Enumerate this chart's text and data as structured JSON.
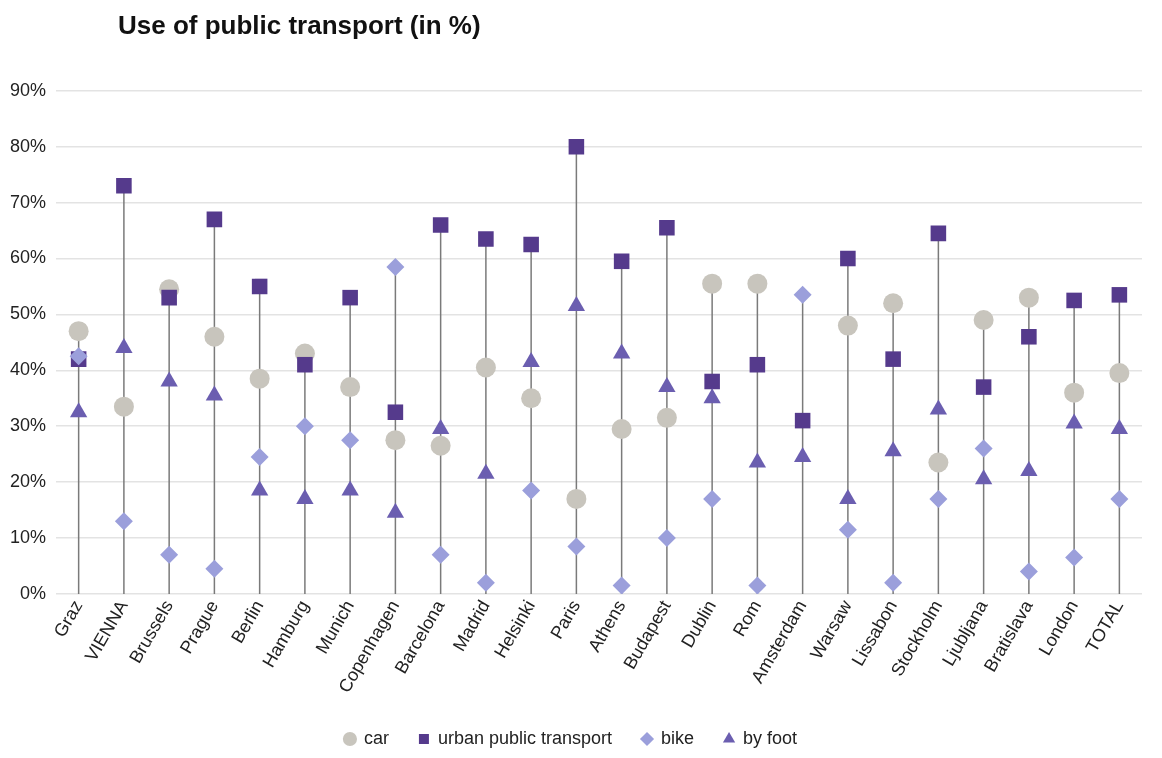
{
  "chart_data": {
    "type": "scatter",
    "title": "Use of public transport (in %)",
    "categories": [
      "Graz",
      "VIENNA",
      "Brussels",
      "Prague",
      "Berlin",
      "Hamburg",
      "Munich",
      "Copenhagen",
      "Barcelona",
      "Madrid",
      "Helsinki",
      "Paris",
      "Athens",
      "Budapest",
      "Dublin",
      "Rom",
      "Amsterdam",
      "Warsaw",
      "Lissabon",
      "Stockholm",
      "Ljubljana",
      "Bratislava",
      "London",
      "TOTAL"
    ],
    "series": [
      {
        "name": "car",
        "color": "#c8c5bd",
        "marker": "circle",
        "values": [
          47,
          33.5,
          54.5,
          46,
          38.5,
          43,
          37,
          27.5,
          26.5,
          40.5,
          35,
          17,
          29.5,
          31.5,
          55.5,
          55.5,
          null,
          48,
          52,
          23.5,
          49,
          53,
          36,
          39.5
        ]
      },
      {
        "name": "urban public transport",
        "color": "#553a8c",
        "marker": "square",
        "values": [
          42,
          73,
          53,
          67,
          55,
          41,
          53,
          32.5,
          66,
          63.5,
          62.5,
          80,
          59.5,
          65.5,
          38,
          41,
          31,
          60,
          42,
          64.5,
          37,
          46,
          52.5,
          53.5
        ]
      },
      {
        "name": "bike",
        "color": "#9b9fdb",
        "marker": "diamond",
        "values": [
          42.5,
          13,
          7,
          4.5,
          24.5,
          30,
          27.5,
          58.5,
          7,
          2,
          18.5,
          8.5,
          1.5,
          10,
          17,
          1.5,
          53.5,
          11.5,
          2,
          17,
          26,
          4,
          6.5,
          17
        ]
      },
      {
        "name": "by foot",
        "color": "#6b5eb0",
        "marker": "triangle",
        "values": [
          32.5,
          44,
          38,
          35.5,
          18.5,
          17,
          18.5,
          14.5,
          29.5,
          21.5,
          41.5,
          51.5,
          43,
          37,
          35,
          23.5,
          24.5,
          17,
          25.5,
          33,
          20.5,
          22,
          30.5,
          29.5
        ]
      }
    ],
    "ylim": [
      0,
      90
    ],
    "yticks": [
      {
        "value": 0,
        "label": "0%"
      },
      {
        "value": 10,
        "label": "10%"
      },
      {
        "value": 20,
        "label": "20%"
      },
      {
        "value": 30,
        "label": "30%"
      },
      {
        "value": 40,
        "label": "40%"
      },
      {
        "value": 50,
        "label": "50%"
      },
      {
        "value": 60,
        "label": "60%"
      },
      {
        "value": 70,
        "label": "70%"
      },
      {
        "value": 80,
        "label": "80%"
      },
      {
        "value": 90,
        "label": "90%"
      }
    ],
    "grid": "y",
    "legend": "bottom"
  }
}
